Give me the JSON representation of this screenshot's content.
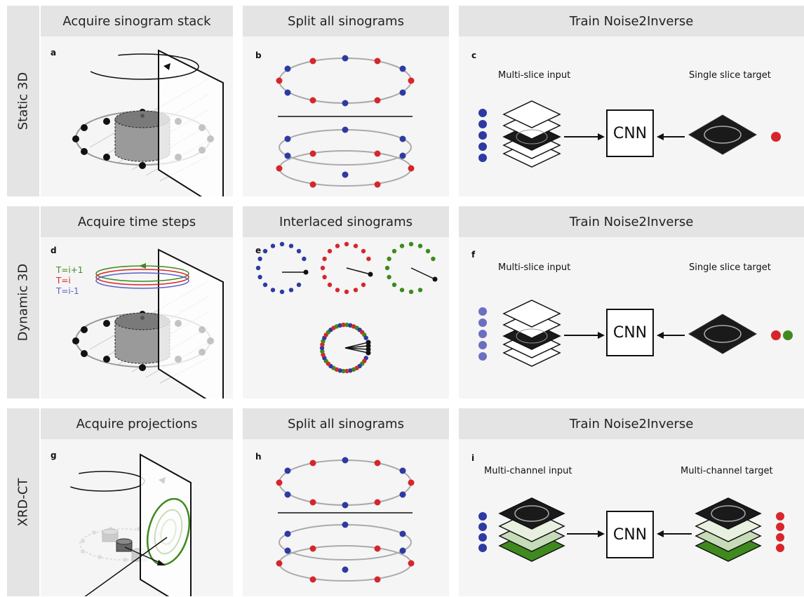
{
  "rows": [
    {
      "label": "Static 3D"
    },
    {
      "label": "Dynamic 3D"
    },
    {
      "label": "XRD-CT"
    }
  ],
  "panels": {
    "a": {
      "letter": "a",
      "title": "Acquire sinogram stack"
    },
    "b": {
      "letter": "b",
      "title": "Split all sinograms"
    },
    "c": {
      "letter": "c",
      "title": "Train Noise2Inverse",
      "input_caption": "Multi-slice input",
      "target_caption": "Single slice target",
      "net": "CNN"
    },
    "d": {
      "letter": "d",
      "title": "Acquire time steps",
      "legend": [
        "T=i+1",
        "T=i",
        "T=i-1"
      ]
    },
    "e": {
      "letter": "e",
      "title": "Interlaced sinograms"
    },
    "f": {
      "letter": "f",
      "title": "Train Noise2Inverse",
      "input_caption": "Multi-slice input",
      "target_caption": "Single slice target",
      "net": "CNN"
    },
    "g": {
      "letter": "g",
      "title": "Acquire projections"
    },
    "h": {
      "letter": "h",
      "title": "Split all sinograms"
    },
    "i": {
      "letter": "i",
      "title": "Train Noise2Inverse",
      "input_caption": "Multi-channel input",
      "target_caption": "Multi-channel target",
      "net": "CNN"
    }
  },
  "colors": {
    "blue": "#2e3aa3",
    "red": "#d7262b",
    "green": "#3f8a1e",
    "lightblue": "#6a70c0",
    "legend_next": "#3f8a1e",
    "legend_now": "#d7262b",
    "legend_prev": "#5a62c8"
  }
}
